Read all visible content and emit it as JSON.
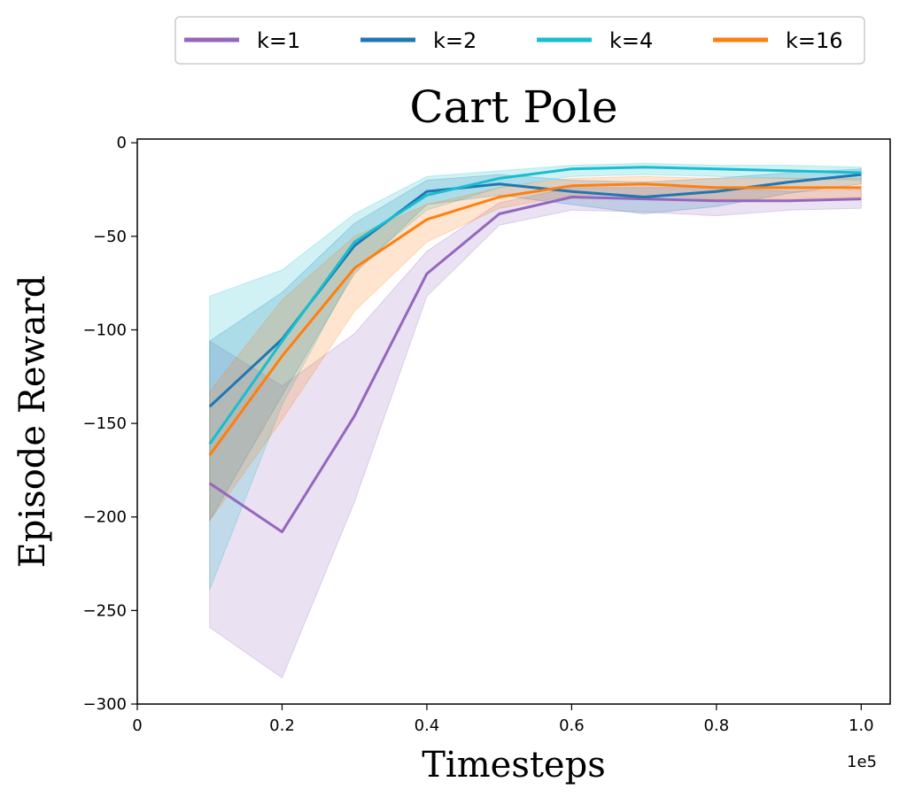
{
  "chart_data": {
    "type": "line",
    "title": "Cart Pole",
    "xlabel": "Timesteps",
    "ylabel": "Episode Reward",
    "x_exponent_label": "1e5",
    "xlim": [
      0,
      1.04
    ],
    "ylim": [
      -300,
      2
    ],
    "xticks": [
      0,
      0.2,
      0.4,
      0.6,
      0.8,
      1.0
    ],
    "xtick_labels": [
      "0",
      "0.2",
      "0.4",
      "0.6",
      "0.8",
      "1.0"
    ],
    "yticks": [
      0,
      -50,
      -100,
      -150,
      -200,
      -250,
      -300
    ],
    "ytick_labels": [
      "0",
      "−50",
      "−100",
      "−150",
      "−200",
      "−250",
      "−300"
    ],
    "x": [
      0.1,
      0.2,
      0.3,
      0.4,
      0.5,
      0.6,
      0.7,
      0.8,
      0.9,
      1.0
    ],
    "legend_position": "top, above title",
    "series": [
      {
        "name": "k=1",
        "color": "#9467bd",
        "values": [
          -182,
          -208,
          -146,
          -70,
          -38,
          -29,
          -30,
          -31,
          -31,
          -30
        ],
        "lower": [
          -259,
          -286,
          -192,
          -82,
          -44,
          -36,
          -37,
          -39,
          -36,
          -35
        ],
        "upper": [
          -106,
          -130,
          -102,
          -58,
          -32,
          -24,
          -24,
          -24,
          -26,
          -25
        ]
      },
      {
        "name": "k=2",
        "color": "#1f77b4",
        "values": [
          -141,
          -105,
          -55,
          -26,
          -22,
          -26,
          -29,
          -26,
          -21,
          -17
        ],
        "lower": [
          -202,
          -135,
          -70,
          -33,
          -28,
          -33,
          -38,
          -34,
          -27,
          -22
        ],
        "upper": [
          -106,
          -80,
          -43,
          -20,
          -17,
          -20,
          -21,
          -19,
          -16,
          -14
        ]
      },
      {
        "name": "k=4",
        "color": "#17becf",
        "values": [
          -161,
          -106,
          -53,
          -28,
          -19,
          -14,
          -13,
          -14,
          -15,
          -16
        ],
        "lower": [
          -239,
          -140,
          -68,
          -36,
          -24,
          -18,
          -17,
          -18,
          -19,
          -20
        ],
        "upper": [
          -82,
          -68,
          -38,
          -18,
          -15,
          -12,
          -11,
          -12,
          -12,
          -13
        ]
      },
      {
        "name": "k=16",
        "color": "#ff7f0e",
        "values": [
          -167,
          -114,
          -67,
          -41,
          -29,
          -23,
          -22,
          -24,
          -24,
          -24
        ],
        "lower": [
          -202,
          -148,
          -90,
          -53,
          -35,
          -28,
          -28,
          -30,
          -30,
          -29
        ],
        "upper": [
          -133,
          -84,
          -50,
          -33,
          -24,
          -19,
          -18,
          -19,
          -19,
          -19
        ]
      }
    ]
  }
}
